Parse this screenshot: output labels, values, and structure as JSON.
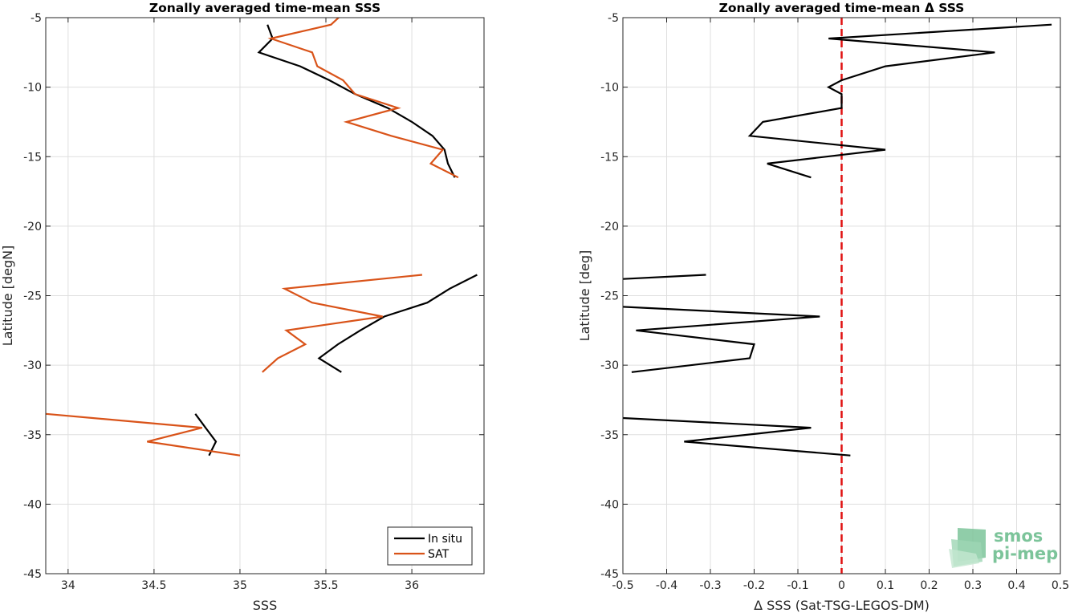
{
  "colors": {
    "insitu": "#000000",
    "sat": "#D95319",
    "zero_line": "#e01010",
    "logo": "#7cc49a"
  },
  "logo": {
    "line1": "smos",
    "line2": "pi-mep"
  },
  "chart_data": [
    {
      "type": "line",
      "title": "Zonally averaged time-mean SSS",
      "xlabel": "SSS",
      "ylabel": "Latitude [degN]",
      "xlim": [
        33.87,
        36.42
      ],
      "ylim": [
        -45,
        -5
      ],
      "xticks": [
        34,
        34.5,
        35,
        35.5,
        36
      ],
      "xticklabels": [
        "34",
        "34.5",
        "35",
        "35.5",
        "36"
      ],
      "yticks": [
        -45,
        -40,
        -35,
        -30,
        -25,
        -20,
        -15,
        -10,
        -5
      ],
      "yticklabels": [
        "-45",
        "-40",
        "-35",
        "-30",
        "-25",
        "-20",
        "-15",
        "-10",
        "-5"
      ],
      "grid": true,
      "legend": {
        "placement": "bottom-right",
        "entries": [
          "In situ",
          "SAT"
        ]
      },
      "series": [
        {
          "name": "In situ",
          "color": "insitu",
          "segments": [
            [
              [
                35.16,
                -5.5
              ],
              [
                35.19,
                -6.5
              ],
              [
                35.11,
                -7.5
              ],
              [
                35.35,
                -8.5
              ],
              [
                35.52,
                -9.5
              ],
              [
                35.67,
                -10.5
              ],
              [
                35.86,
                -11.5
              ],
              [
                36.0,
                -12.5
              ],
              [
                36.12,
                -13.5
              ],
              [
                36.19,
                -14.5
              ],
              [
                36.21,
                -15.5
              ],
              [
                36.25,
                -16.5
              ]
            ],
            [
              [
                36.38,
                -23.5
              ],
              [
                36.22,
                -24.5
              ],
              [
                36.09,
                -25.5
              ],
              [
                35.84,
                -26.5
              ],
              [
                35.7,
                -27.5
              ],
              [
                35.57,
                -28.5
              ],
              [
                35.46,
                -29.5
              ],
              [
                35.59,
                -30.5
              ]
            ],
            [
              [
                34.74,
                -33.5
              ],
              [
                34.8,
                -34.5
              ],
              [
                34.86,
                -35.5
              ],
              [
                34.82,
                -36.5
              ]
            ]
          ]
        },
        {
          "name": "SAT",
          "color": "sat",
          "segments": [
            [
              [
                35.6,
                -4.7
              ],
              [
                35.53,
                -5.5
              ],
              [
                35.18,
                -6.5
              ],
              [
                35.42,
                -7.5
              ],
              [
                35.45,
                -8.5
              ],
              [
                35.6,
                -9.5
              ],
              [
                35.67,
                -10.5
              ],
              [
                35.92,
                -11.5
              ],
              [
                35.62,
                -12.5
              ],
              [
                35.88,
                -13.5
              ],
              [
                36.18,
                -14.5
              ],
              [
                36.11,
                -15.5
              ],
              [
                36.27,
                -16.5
              ]
            ],
            [
              [
                36.06,
                -23.5
              ],
              [
                35.26,
                -24.5
              ],
              [
                35.42,
                -25.5
              ],
              [
                35.83,
                -26.5
              ],
              [
                35.27,
                -27.5
              ],
              [
                35.38,
                -28.5
              ],
              [
                35.22,
                -29.5
              ],
              [
                35.13,
                -30.5
              ]
            ],
            [
              [
                33.87,
                -33.5
              ],
              [
                34.78,
                -34.5
              ],
              [
                34.46,
                -35.5
              ],
              [
                35.0,
                -36.5
              ]
            ]
          ]
        }
      ]
    },
    {
      "type": "line",
      "title": "Zonally averaged time-mean Δ SSS",
      "xlabel": "Δ SSS (Sat-TSG-LEGOS-DM)",
      "ylabel": "Latitude [deg]",
      "xlim": [
        -0.5,
        0.5
      ],
      "ylim": [
        -45,
        -5
      ],
      "xticks": [
        -0.5,
        -0.4,
        -0.3,
        -0.2,
        -0.1,
        0,
        0.1,
        0.2,
        0.3,
        0.4,
        0.5
      ],
      "xticklabels": [
        "-0.5",
        "-0.4",
        "-0.3",
        "-0.2",
        "-0.1",
        "0",
        "0.1",
        "0.2",
        "0.3",
        "0.4",
        "0.5"
      ],
      "yticks": [
        -45,
        -40,
        -35,
        -30,
        -25,
        -20,
        -15,
        -10,
        -5
      ],
      "yticklabels": [
        "-45",
        "-40",
        "-35",
        "-30",
        "-25",
        "-20",
        "-15",
        "-10",
        "-5"
      ],
      "grid": true,
      "reference_line": {
        "x": 0,
        "style": "dashed",
        "color": "zero_line"
      },
      "series": [
        {
          "color": "insitu",
          "segments": [
            [
              [
                0.48,
                -5.5
              ],
              [
                -0.03,
                -6.5
              ],
              [
                0.35,
                -7.5
              ],
              [
                0.1,
                -8.5
              ],
              [
                0.0,
                -9.5
              ],
              [
                -0.03,
                -10
              ],
              [
                0.0,
                -10.5
              ],
              [
                0.0,
                -11.5
              ],
              [
                -0.18,
                -12.5
              ],
              [
                -0.21,
                -13.5
              ],
              [
                0.1,
                -14.5
              ],
              [
                -0.17,
                -15.5
              ],
              [
                -0.07,
                -16.5
              ]
            ],
            [
              [
                -0.31,
                -23.5
              ],
              [
                -0.5,
                -23.8
              ]
            ],
            [
              [
                -0.5,
                -25.8
              ],
              [
                -0.05,
                -26.5
              ],
              [
                -0.47,
                -27.5
              ],
              [
                -0.2,
                -28.5
              ],
              [
                -0.21,
                -29.5
              ],
              [
                -0.48,
                -30.5
              ]
            ],
            [
              [
                -0.5,
                -33.8
              ],
              [
                -0.07,
                -34.5
              ],
              [
                -0.36,
                -35.5
              ],
              [
                0.02,
                -36.5
              ]
            ]
          ]
        }
      ]
    }
  ]
}
